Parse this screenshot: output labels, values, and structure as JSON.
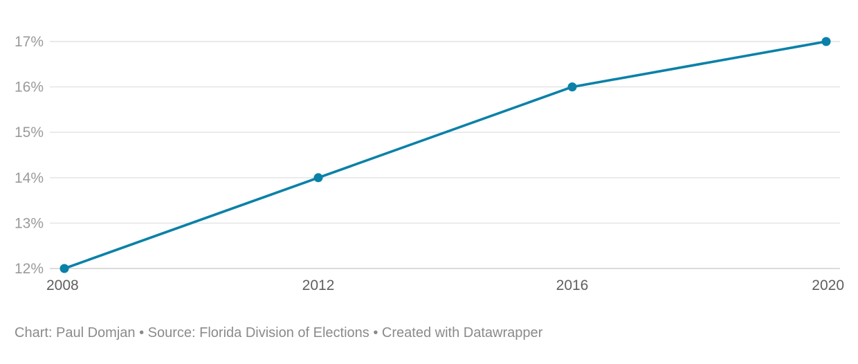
{
  "chart_data": {
    "type": "line",
    "x": [
      2008,
      2012,
      2016,
      2020
    ],
    "series": [
      {
        "values": [
          12,
          14,
          16,
          17
        ],
        "color": "#0a81a8"
      }
    ],
    "yticks": [
      12,
      13,
      14,
      15,
      16,
      17
    ],
    "ytick_labels": [
      "12%",
      "13%",
      "14%",
      "15%",
      "16%",
      "17%"
    ],
    "xtick_labels": [
      "2008",
      "2012",
      "2016",
      "2020"
    ],
    "xlim": [
      2008,
      2020
    ],
    "ylim": [
      12,
      17
    ],
    "grid": true,
    "markers": true
  },
  "footer": {
    "credit": "Chart: Paul Domjan",
    "source": "Source: Florida Division of Elections",
    "created": "Created with Datawrapper",
    "separator": " • "
  }
}
